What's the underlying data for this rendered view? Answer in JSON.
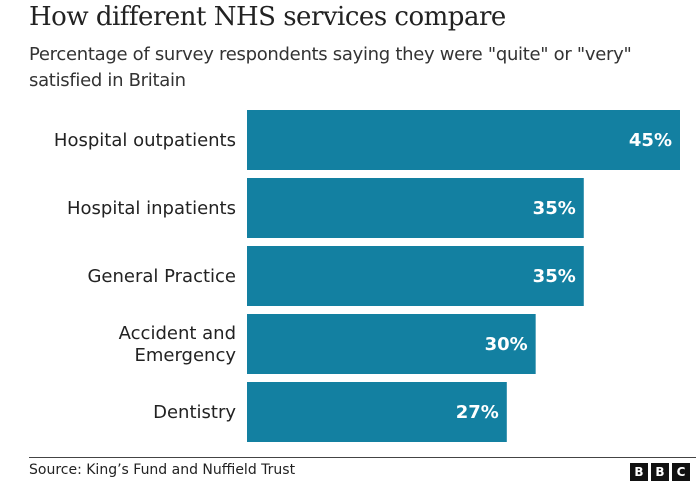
{
  "chart_data": {
    "type": "bar",
    "orientation": "horizontal",
    "title": "How different NHS services compare",
    "subtitle": "Percentage of survey respondents saying they were \"quite\" or \"very\" satisfied in Britain",
    "categories": [
      "Hospital outpatients",
      "Hospital inpatients",
      "General Practice",
      "Accident and Emergency",
      "Dentistry"
    ],
    "category_lines": [
      [
        "Hospital outpatients"
      ],
      [
        "Hospital inpatients"
      ],
      [
        "General Practice"
      ],
      [
        "Accident and",
        "Emergency"
      ],
      [
        "Dentistry"
      ]
    ],
    "values": [
      45,
      35,
      35,
      30,
      27
    ],
    "value_labels": [
      "45%",
      "35%",
      "35%",
      "30%",
      "27%"
    ],
    "xlabel": "",
    "ylabel": "",
    "xlim": [
      0,
      45
    ],
    "grid": false,
    "bar_color": "#1380a1",
    "source": "Source: King’s Fund and Nuffield Trust"
  },
  "logo": {
    "name": "bbc-logo",
    "letters": [
      "B",
      "B",
      "C"
    ]
  }
}
